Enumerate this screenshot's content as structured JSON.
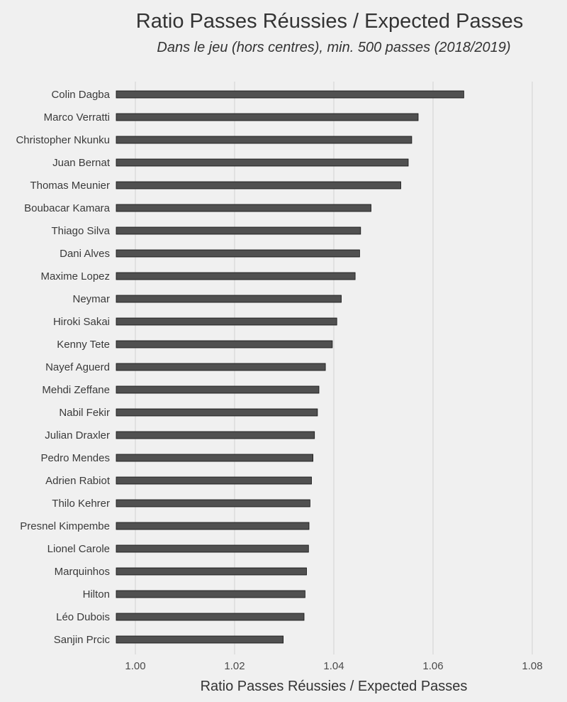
{
  "chart_data": {
    "type": "bar",
    "orientation": "horizontal",
    "title": "Ratio Passes Réussies / Expected Passes",
    "subtitle": "Dans le jeu (hors centres), min. 500 passes (2018/2019)",
    "xlabel": "Ratio Passes Réussies / Expected Passes",
    "ylabel": "",
    "xlim": [
      0.995,
      1.085
    ],
    "xticks": [
      1.0,
      1.02,
      1.04,
      1.06,
      1.08
    ],
    "xtick_labels": [
      "1.00",
      "1.02",
      "1.04",
      "1.06",
      "1.08"
    ],
    "grid": true,
    "bar_color": "#505050",
    "categories": [
      "Colin Dagba",
      "Marco Verratti",
      "Christopher Nkunku",
      "Juan Bernat",
      "Thomas Meunier",
      "Boubacar Kamara",
      "Thiago Silva",
      "Dani Alves",
      "Maxime Lopez",
      "Neymar",
      "Hiroki Sakai",
      "Kenny Tete",
      "Nayef Aguerd",
      "Mehdi Zeffane",
      "Nabil Fekir",
      "Julian Draxler",
      "Pedro Mendes",
      "Adrien Rabiot",
      "Thilo Kehrer",
      "Presnel Kimpembe",
      "Lionel Carole",
      "Marquinhos",
      "Hilton",
      "Léo Dubois",
      "Sanjin Prcic"
    ],
    "values": [
      1.0662,
      1.057,
      1.0557,
      1.055,
      1.0535,
      1.0475,
      1.0454,
      1.0452,
      1.0443,
      1.0415,
      1.0406,
      1.0397,
      1.0383,
      1.037,
      1.0367,
      1.0361,
      1.0358,
      1.0355,
      1.0352,
      1.035,
      1.0349,
      1.0345,
      1.0342,
      1.034,
      1.0298
    ]
  }
}
